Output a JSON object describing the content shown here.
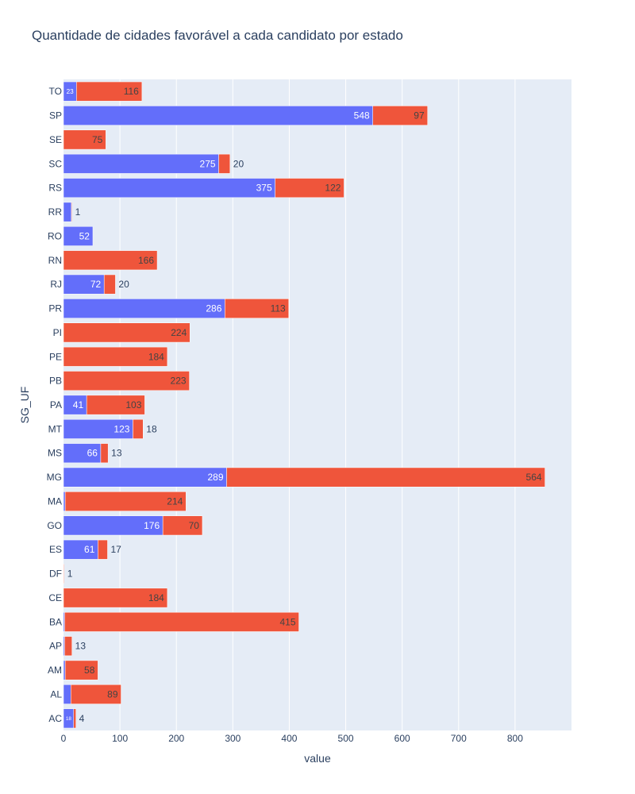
{
  "chart_data": {
    "type": "bar",
    "orientation": "horizontal",
    "barmode": "stack",
    "title": "Quantidade de cidades favorável a cada candidato por estado",
    "xlabel": "value",
    "ylabel": "SG_UF",
    "xlim": [
      0,
      900
    ],
    "xticks": [
      0,
      100,
      200,
      300,
      400,
      500,
      600,
      700,
      800
    ],
    "grid": true,
    "colors": {
      "background": "#e5ecf6",
      "series1": "#636efa",
      "series2": "#ef553b"
    },
    "categories": [
      "AC",
      "AL",
      "AM",
      "AP",
      "BA",
      "CE",
      "DF",
      "ES",
      "GO",
      "MA",
      "MG",
      "MS",
      "MT",
      "PA",
      "PB",
      "PE",
      "PI",
      "PR",
      "RJ",
      "RN",
      "RO",
      "RR",
      "RS",
      "SC",
      "SE",
      "SP",
      "TO"
    ],
    "series": [
      {
        "values": [
          18,
          13,
          3,
          2,
          2,
          0,
          0,
          61,
          176,
          3,
          289,
          66,
          123,
          41,
          0,
          0,
          0,
          286,
          72,
          0,
          52,
          14,
          375,
          275,
          0,
          548,
          23
        ]
      },
      {
        "values": [
          4,
          89,
          58,
          13,
          415,
          184,
          1,
          17,
          70,
          214,
          564,
          13,
          18,
          103,
          223,
          184,
          224,
          113,
          20,
          166,
          0,
          1,
          122,
          20,
          75,
          97,
          116
        ]
      }
    ]
  }
}
